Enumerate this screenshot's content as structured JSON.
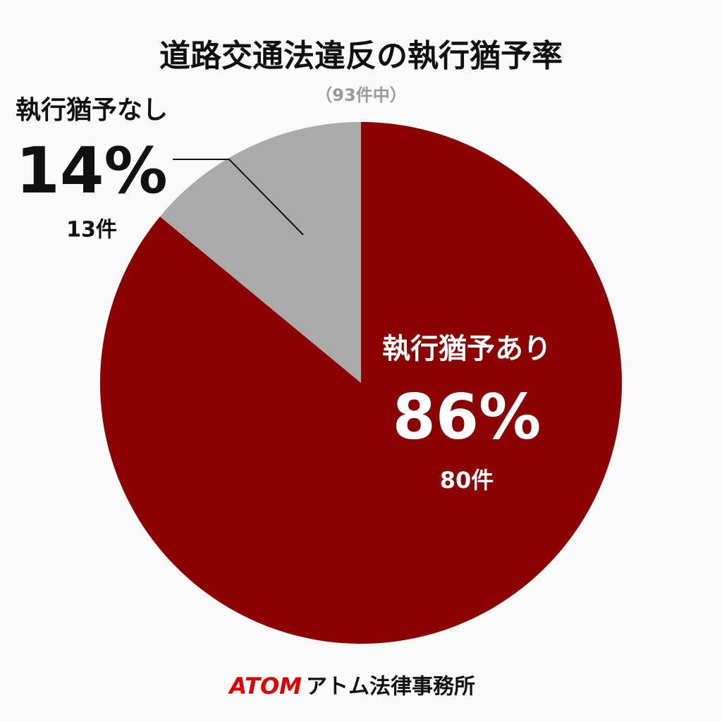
{
  "chart_data": {
    "type": "pie",
    "title": "道路交通法違反の執行猶予率",
    "subtitle": "（93件中）",
    "categories": [
      "執行猶予あり",
      "執行猶予なし"
    ],
    "values": [
      86,
      14
    ],
    "value_labels": [
      "86%",
      "14%"
    ],
    "count_labels": [
      "80件",
      "13件"
    ],
    "colors": [
      "#8b0000",
      "#aaaaaa"
    ]
  },
  "footer": {
    "brand": "ATOM",
    "name": "アトム法律事務所"
  }
}
